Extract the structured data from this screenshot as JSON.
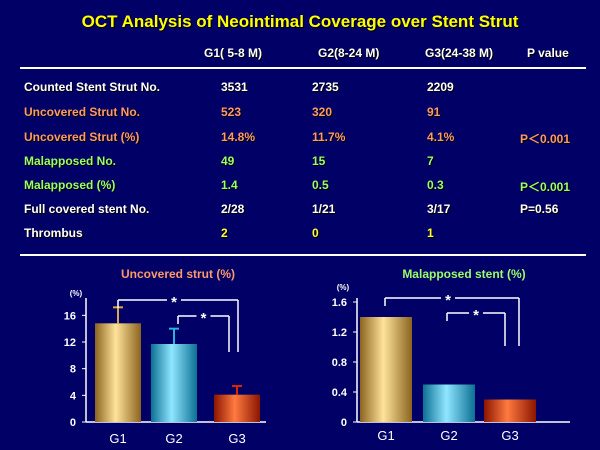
{
  "title": "OCT Analysis of Neointimal Coverage over Stent Strut",
  "headers": [
    "G1( 5-8 M)",
    "G2(8-24 M)",
    "G3(24-38 M)",
    "P value"
  ],
  "rows": [
    {
      "label": "Counted Stent Strut No.",
      "values": [
        "3531",
        "2735",
        "2209"
      ],
      "p": "",
      "color": "white"
    },
    {
      "label": "Uncovered Strut No.",
      "values": [
        "523",
        "320",
        "91"
      ],
      "p": "",
      "color": "orange"
    },
    {
      "label": "Uncovered Strut (%)",
      "values": [
        "14.8%",
        "11.7%",
        "4.1%"
      ],
      "p": "P＜0.001",
      "color": "orange"
    },
    {
      "label": "Malapposed No.",
      "values": [
        "49",
        "15",
        "7"
      ],
      "p": "",
      "color": "green"
    },
    {
      "label": "Malapposed (%)",
      "values": [
        "1.4",
        "0.5",
        "0.3"
      ],
      "p": "P＜0.001",
      "color": "green"
    },
    {
      "label": "Full covered stent No.",
      "values": [
        "2/28",
        "1/21",
        "3/17"
      ],
      "p": "P=0.56",
      "color": "white"
    },
    {
      "label": "Thrombus",
      "values": [
        "2",
        "0",
        "1"
      ],
      "p": "",
      "color": "yellowvals"
    }
  ],
  "colors": {
    "background": "#000066",
    "title": "#ffff00",
    "bar_g1": "#d9a84a",
    "bar_g2": "#2fb0d8",
    "bar_g3": "#dd2200",
    "chart_left_title": "#ff9966",
    "chart_right_title": "#99ff66"
  },
  "chart_data": [
    {
      "type": "bar",
      "title": "Uncovered strut (%)",
      "unit_label": "(%)",
      "categories": [
        "G1",
        "G2",
        "G3"
      ],
      "values": [
        14.8,
        11.7,
        4.1
      ],
      "errors": [
        2.4,
        2.3,
        1.3
      ],
      "ylim": [
        0,
        18
      ],
      "yticks": [
        0,
        4,
        8,
        12,
        16
      ],
      "ytick_labels": [
        "0",
        "4",
        "8",
        "12",
        "16"
      ],
      "significance": [
        {
          "from": "G1",
          "to": "G3",
          "label": "*"
        },
        {
          "from": "G2",
          "to": "G3",
          "label": "*"
        }
      ]
    },
    {
      "type": "bar",
      "title": "Malapposed stent (%)",
      "unit_label": "(%)",
      "categories": [
        "G1",
        "G2",
        "G3"
      ],
      "values": [
        1.4,
        0.5,
        0.3
      ],
      "errors": [
        0,
        0,
        0
      ],
      "ylim": [
        0,
        1.6
      ],
      "yticks": [
        0,
        0.4,
        0.8,
        1.2,
        1.6
      ],
      "ytick_labels": [
        "0",
        "0.4",
        "0.8",
        "1.2",
        "1.6"
      ],
      "significance": [
        {
          "from": "G1",
          "to": "G3",
          "label": "*"
        },
        {
          "from": "G2",
          "to": "G3",
          "label": "*"
        }
      ]
    }
  ]
}
